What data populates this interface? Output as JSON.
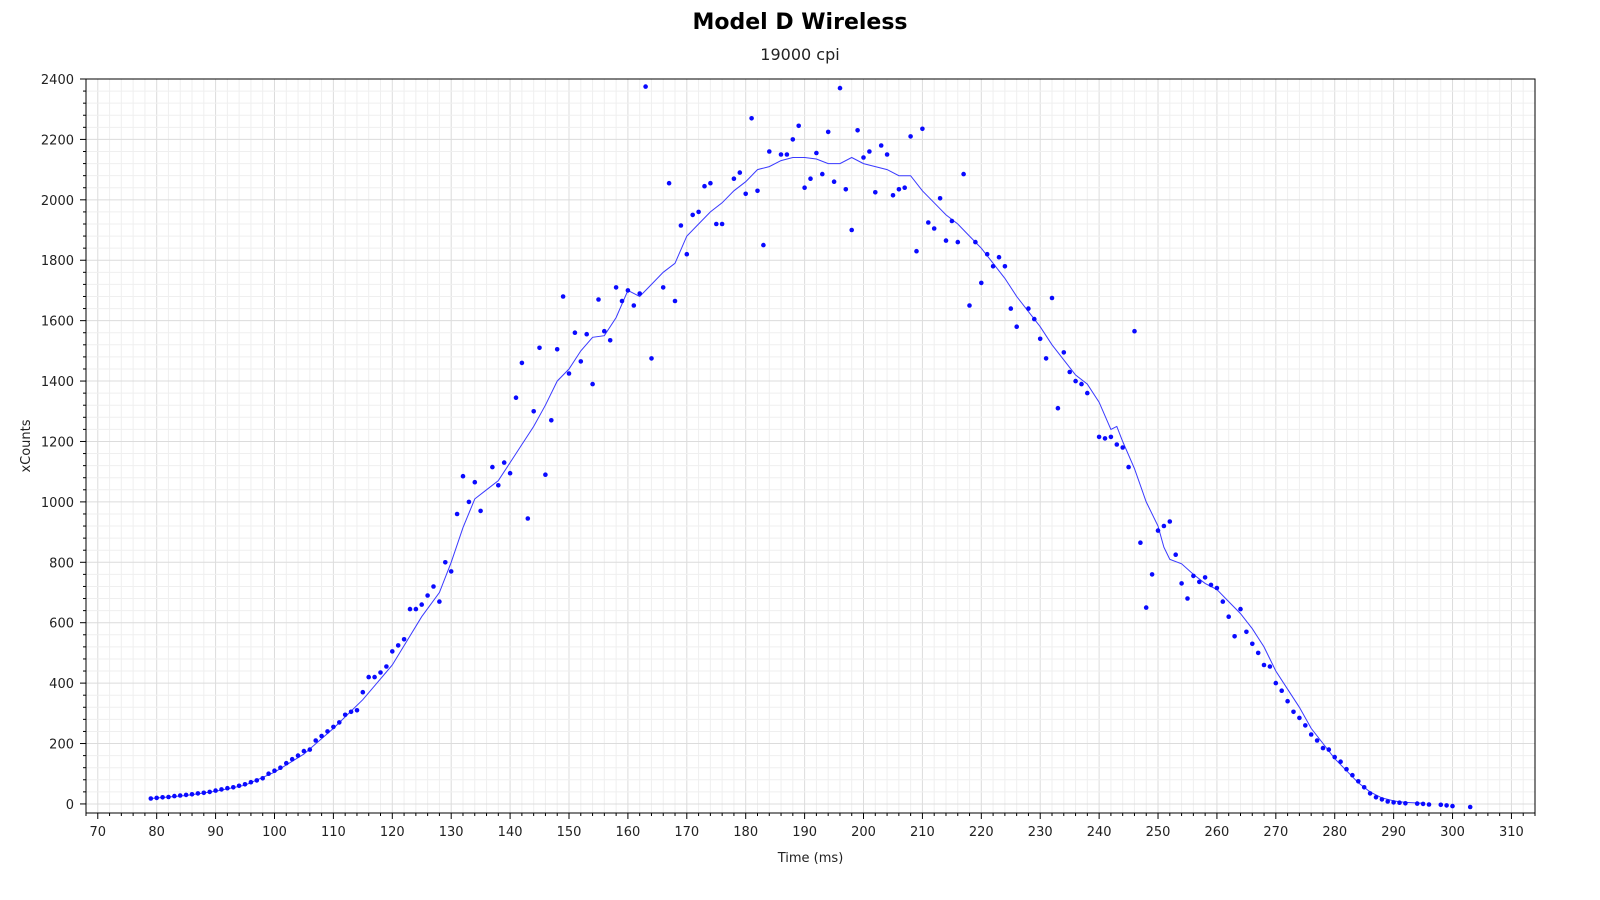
{
  "chart_data": {
    "type": "scatter",
    "title": "Model D Wireless",
    "subtitle": "19000 cpi",
    "xlabel": "Time (ms)",
    "ylabel": "xCounts",
    "xlim": [
      68,
      314
    ],
    "ylim": [
      -30,
      2400
    ],
    "x_ticks": [
      70,
      80,
      90,
      100,
      110,
      120,
      130,
      140,
      150,
      160,
      170,
      180,
      190,
      200,
      210,
      220,
      230,
      240,
      250,
      260,
      270,
      280,
      290,
      300,
      310
    ],
    "y_ticks": [
      0,
      200,
      400,
      600,
      800,
      1000,
      1200,
      1400,
      1600,
      1800,
      2000,
      2200,
      2400
    ],
    "grid": true,
    "colors": {
      "points": "#0a0aff",
      "line": "#3a3aff",
      "grid": "#e6e6e6",
      "axis": "#000000"
    },
    "series": [
      {
        "kind": "points",
        "points": [
          [
            79,
            18
          ],
          [
            80,
            20
          ],
          [
            81,
            22
          ],
          [
            82,
            23
          ],
          [
            83,
            26
          ],
          [
            84,
            28
          ],
          [
            85,
            30
          ],
          [
            86,
            32
          ],
          [
            87,
            35
          ],
          [
            88,
            37
          ],
          [
            89,
            40
          ],
          [
            90,
            44
          ],
          [
            91,
            48
          ],
          [
            92,
            52
          ],
          [
            93,
            55
          ],
          [
            94,
            60
          ],
          [
            95,
            65
          ],
          [
            96,
            72
          ],
          [
            97,
            78
          ],
          [
            98,
            85
          ],
          [
            99,
            100
          ],
          [
            100,
            110
          ],
          [
            101,
            120
          ],
          [
            102,
            135
          ],
          [
            103,
            148
          ],
          [
            104,
            160
          ],
          [
            105,
            175
          ],
          [
            106,
            180
          ],
          [
            107,
            210
          ],
          [
            108,
            225
          ],
          [
            109,
            240
          ],
          [
            110,
            255
          ],
          [
            111,
            270
          ],
          [
            112,
            295
          ],
          [
            113,
            305
          ],
          [
            114,
            310
          ],
          [
            115,
            370
          ],
          [
            116,
            420
          ],
          [
            117,
            420
          ],
          [
            118,
            435
          ],
          [
            119,
            455
          ],
          [
            120,
            505
          ],
          [
            121,
            525
          ],
          [
            122,
            545
          ],
          [
            123,
            645
          ],
          [
            124,
            645
          ],
          [
            125,
            660
          ],
          [
            126,
            690
          ],
          [
            127,
            720
          ],
          [
            128,
            670
          ],
          [
            129,
            800
          ],
          [
            130,
            770
          ],
          [
            131,
            960
          ],
          [
            132,
            1085
          ],
          [
            133,
            1000
          ],
          [
            134,
            1065
          ],
          [
            135,
            970
          ],
          [
            137,
            1115
          ],
          [
            138,
            1055
          ],
          [
            139,
            1130
          ],
          [
            140,
            1095
          ],
          [
            141,
            1345
          ],
          [
            142,
            1460
          ],
          [
            143,
            945
          ],
          [
            144,
            1300
          ],
          [
            145,
            1510
          ],
          [
            146,
            1090
          ],
          [
            147,
            1270
          ],
          [
            148,
            1505
          ],
          [
            149,
            1680
          ],
          [
            150,
            1425
          ],
          [
            151,
            1560
          ],
          [
            152,
            1465
          ],
          [
            153,
            1555
          ],
          [
            154,
            1390
          ],
          [
            155,
            1670
          ],
          [
            156,
            1565
          ],
          [
            157,
            1535
          ],
          [
            158,
            1710
          ],
          [
            159,
            1665
          ],
          [
            160,
            1700
          ],
          [
            161,
            1650
          ],
          [
            162,
            1690
          ],
          [
            163,
            2375
          ],
          [
            164,
            1475
          ],
          [
            166,
            1710
          ],
          [
            167,
            2055
          ],
          [
            168,
            1665
          ],
          [
            169,
            1915
          ],
          [
            170,
            1820
          ],
          [
            171,
            1950
          ],
          [
            172,
            1960
          ],
          [
            173,
            2045
          ],
          [
            174,
            2055
          ],
          [
            175,
            1920
          ],
          [
            176,
            1920
          ],
          [
            178,
            2070
          ],
          [
            179,
            2090
          ],
          [
            180,
            2020
          ],
          [
            181,
            2270
          ],
          [
            182,
            2030
          ],
          [
            183,
            1850
          ],
          [
            184,
            2160
          ],
          [
            186,
            2150
          ],
          [
            187,
            2150
          ],
          [
            188,
            2200
          ],
          [
            189,
            2245
          ],
          [
            190,
            2040
          ],
          [
            191,
            2070
          ],
          [
            192,
            2155
          ],
          [
            193,
            2085
          ],
          [
            194,
            2225
          ],
          [
            195,
            2060
          ],
          [
            196,
            2370
          ],
          [
            197,
            2035
          ],
          [
            198,
            1900
          ],
          [
            199,
            2230
          ],
          [
            200,
            2140
          ],
          [
            201,
            2160
          ],
          [
            202,
            2025
          ],
          [
            203,
            2180
          ],
          [
            204,
            2150
          ],
          [
            205,
            2015
          ],
          [
            206,
            2035
          ],
          [
            207,
            2040
          ],
          [
            208,
            2210
          ],
          [
            209,
            1830
          ],
          [
            210,
            2235
          ],
          [
            211,
            1925
          ],
          [
            212,
            1905
          ],
          [
            213,
            2005
          ],
          [
            214,
            1865
          ],
          [
            215,
            1930
          ],
          [
            216,
            1860
          ],
          [
            217,
            2085
          ],
          [
            218,
            1650
          ],
          [
            219,
            1860
          ],
          [
            220,
            1725
          ],
          [
            221,
            1820
          ],
          [
            222,
            1780
          ],
          [
            223,
            1810
          ],
          [
            224,
            1780
          ],
          [
            225,
            1640
          ],
          [
            226,
            1580
          ],
          [
            228,
            1640
          ],
          [
            229,
            1605
          ],
          [
            230,
            1540
          ],
          [
            231,
            1475
          ],
          [
            232,
            1675
          ],
          [
            233,
            1310
          ],
          [
            234,
            1495
          ],
          [
            235,
            1430
          ],
          [
            236,
            1400
          ],
          [
            237,
            1390
          ],
          [
            238,
            1360
          ],
          [
            240,
            1215
          ],
          [
            241,
            1210
          ],
          [
            242,
            1215
          ],
          [
            243,
            1190
          ],
          [
            244,
            1180
          ],
          [
            245,
            1115
          ],
          [
            246,
            1565
          ],
          [
            247,
            865
          ],
          [
            248,
            650
          ],
          [
            249,
            760
          ],
          [
            250,
            905
          ],
          [
            251,
            920
          ],
          [
            252,
            935
          ],
          [
            253,
            825
          ],
          [
            254,
            730
          ],
          [
            255,
            680
          ],
          [
            256,
            755
          ],
          [
            257,
            735
          ],
          [
            258,
            750
          ],
          [
            259,
            725
          ],
          [
            260,
            715
          ],
          [
            261,
            670
          ],
          [
            262,
            620
          ],
          [
            263,
            555
          ],
          [
            264,
            645
          ],
          [
            265,
            570
          ],
          [
            266,
            530
          ],
          [
            267,
            500
          ],
          [
            268,
            460
          ],
          [
            269,
            455
          ],
          [
            270,
            400
          ],
          [
            271,
            375
          ],
          [
            272,
            340
          ],
          [
            273,
            305
          ],
          [
            274,
            285
          ],
          [
            275,
            260
          ],
          [
            276,
            230
          ],
          [
            277,
            210
          ],
          [
            278,
            185
          ],
          [
            279,
            180
          ],
          [
            280,
            155
          ],
          [
            281,
            140
          ],
          [
            282,
            115
          ],
          [
            283,
            95
          ],
          [
            284,
            75
          ],
          [
            285,
            55
          ],
          [
            286,
            35
          ],
          [
            287,
            22
          ],
          [
            288,
            15
          ],
          [
            289,
            8
          ],
          [
            290,
            5
          ],
          [
            291,
            4
          ],
          [
            292,
            2
          ],
          [
            294,
            1
          ],
          [
            295,
            0
          ],
          [
            296,
            -2
          ],
          [
            298,
            -3
          ],
          [
            299,
            -5
          ],
          [
            300,
            -7
          ],
          [
            303,
            -10
          ]
        ]
      },
      {
        "kind": "line",
        "points": [
          [
            79,
            18
          ],
          [
            85,
            28
          ],
          [
            90,
            42
          ],
          [
            95,
            62
          ],
          [
            100,
            105
          ],
          [
            105,
            165
          ],
          [
            110,
            250
          ],
          [
            115,
            345
          ],
          [
            120,
            460
          ],
          [
            125,
            620
          ],
          [
            128,
            700
          ],
          [
            130,
            800
          ],
          [
            132,
            915
          ],
          [
            134,
            1010
          ],
          [
            136,
            1040
          ],
          [
            138,
            1070
          ],
          [
            140,
            1130
          ],
          [
            142,
            1190
          ],
          [
            144,
            1250
          ],
          [
            146,
            1320
          ],
          [
            148,
            1400
          ],
          [
            150,
            1440
          ],
          [
            152,
            1500
          ],
          [
            154,
            1545
          ],
          [
            156,
            1550
          ],
          [
            158,
            1610
          ],
          [
            160,
            1700
          ],
          [
            162,
            1680
          ],
          [
            164,
            1720
          ],
          [
            166,
            1760
          ],
          [
            168,
            1790
          ],
          [
            170,
            1880
          ],
          [
            172,
            1920
          ],
          [
            174,
            1960
          ],
          [
            176,
            1990
          ],
          [
            178,
            2030
          ],
          [
            180,
            2060
          ],
          [
            182,
            2100
          ],
          [
            184,
            2110
          ],
          [
            186,
            2130
          ],
          [
            188,
            2140
          ],
          [
            190,
            2140
          ],
          [
            192,
            2135
          ],
          [
            194,
            2120
          ],
          [
            196,
            2120
          ],
          [
            198,
            2140
          ],
          [
            200,
            2120
          ],
          [
            202,
            2110
          ],
          [
            204,
            2100
          ],
          [
            206,
            2080
          ],
          [
            208,
            2080
          ],
          [
            210,
            2030
          ],
          [
            212,
            1990
          ],
          [
            214,
            1950
          ],
          [
            216,
            1920
          ],
          [
            218,
            1880
          ],
          [
            220,
            1840
          ],
          [
            222,
            1790
          ],
          [
            224,
            1740
          ],
          [
            226,
            1680
          ],
          [
            228,
            1630
          ],
          [
            230,
            1580
          ],
          [
            232,
            1520
          ],
          [
            234,
            1470
          ],
          [
            236,
            1420
          ],
          [
            238,
            1390
          ],
          [
            240,
            1330
          ],
          [
            242,
            1240
          ],
          [
            243,
            1250
          ],
          [
            244,
            1200
          ],
          [
            246,
            1110
          ],
          [
            248,
            1000
          ],
          [
            250,
            920
          ],
          [
            251,
            850
          ],
          [
            252,
            810
          ],
          [
            254,
            795
          ],
          [
            256,
            760
          ],
          [
            258,
            730
          ],
          [
            260,
            710
          ],
          [
            262,
            670
          ],
          [
            264,
            630
          ],
          [
            266,
            580
          ],
          [
            268,
            520
          ],
          [
            270,
            440
          ],
          [
            272,
            380
          ],
          [
            274,
            320
          ],
          [
            276,
            250
          ],
          [
            278,
            200
          ],
          [
            280,
            150
          ],
          [
            282,
            110
          ],
          [
            284,
            70
          ],
          [
            286,
            40
          ],
          [
            288,
            20
          ],
          [
            290,
            10
          ],
          [
            292,
            5
          ],
          [
            295,
            2
          ]
        ]
      }
    ]
  }
}
